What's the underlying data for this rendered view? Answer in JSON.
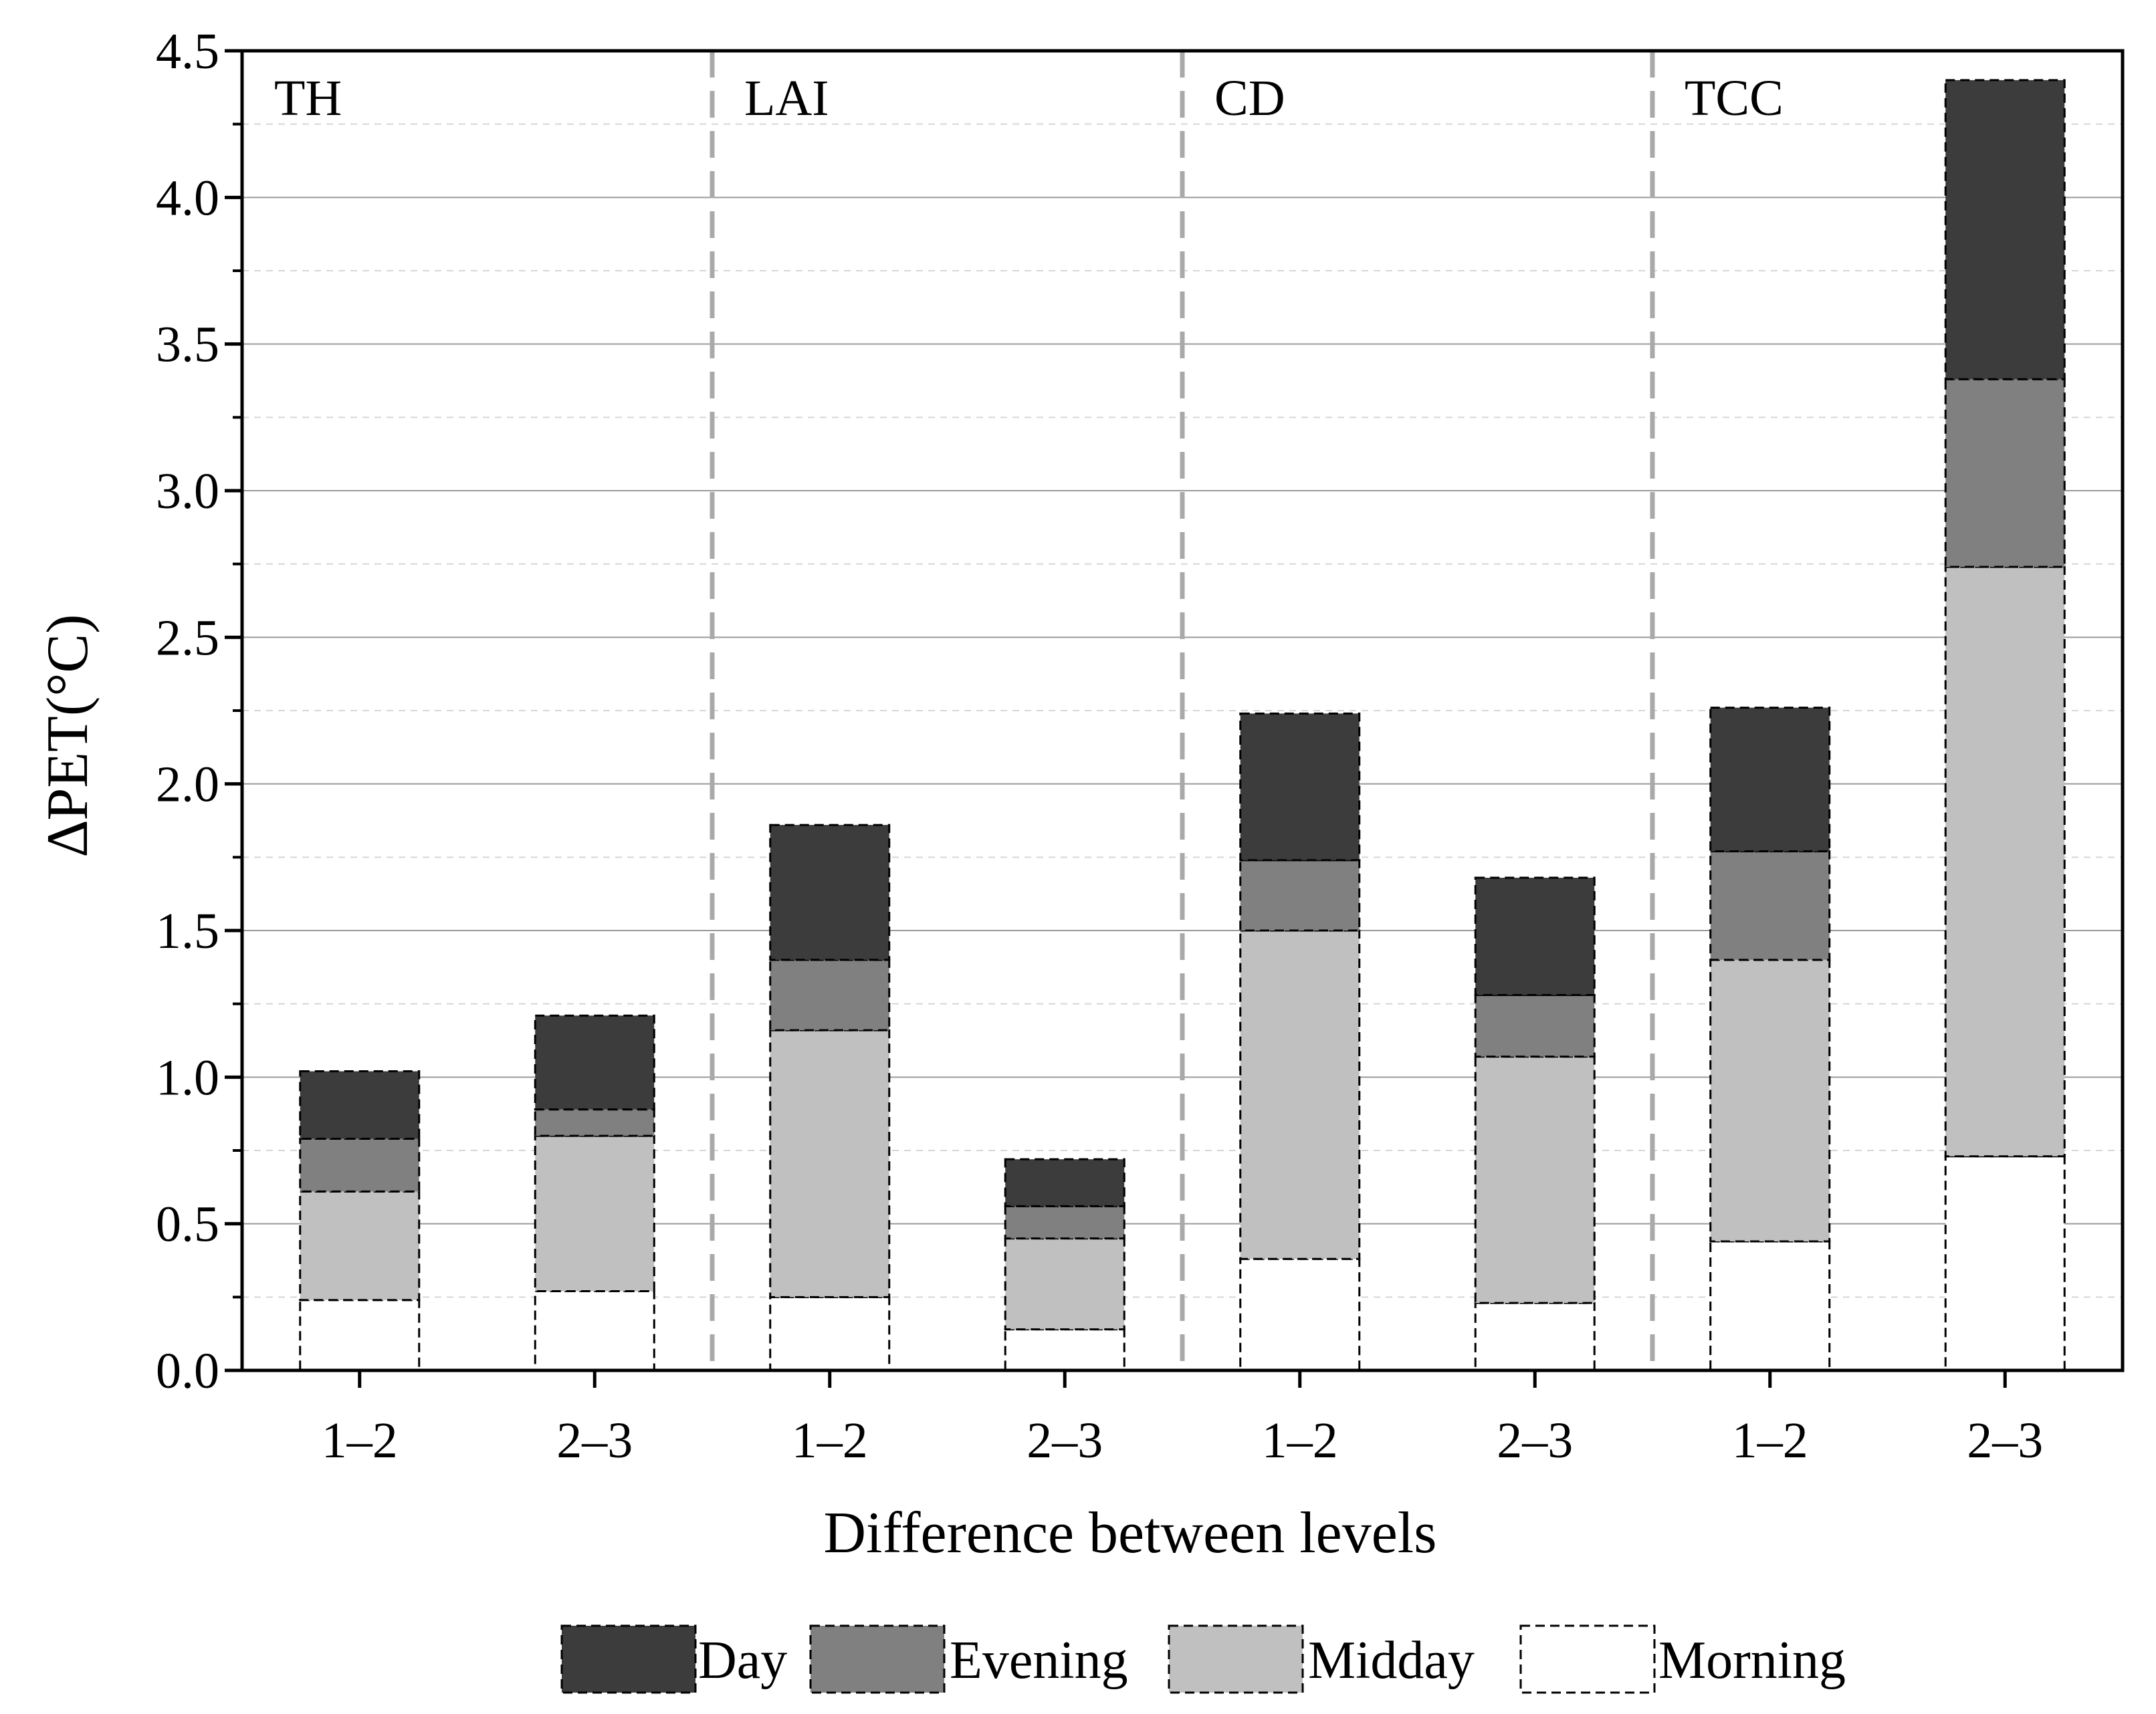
{
  "chart_data": {
    "type": "bar",
    "stacked": true,
    "xlabel": "Difference between levels",
    "ylabel": "∆PET(°C)",
    "ylim": [
      0,
      4.5
    ],
    "yticks": [
      "0.0",
      "0.5",
      "1.0",
      "1.5",
      "2.0",
      "2.5",
      "3.0",
      "3.5",
      "4.0",
      "4.5"
    ],
    "groups": [
      "TH",
      "LAI",
      "CD",
      "TCC"
    ],
    "categories": [
      "1–2",
      "2–3",
      "1–2",
      "2–3",
      "1–2",
      "2–3",
      "1–2",
      "2–3"
    ],
    "category_groups": [
      "TH",
      "TH",
      "LAI",
      "LAI",
      "CD",
      "CD",
      "TCC",
      "TCC"
    ],
    "series": [
      {
        "name": "Morning",
        "color": "#ffffff",
        "values": [
          0.24,
          0.27,
          0.25,
          0.14,
          0.38,
          0.23,
          0.44,
          0.73
        ]
      },
      {
        "name": "Midday",
        "color": "#c0c0c0",
        "values": [
          0.37,
          0.53,
          0.91,
          0.31,
          1.12,
          0.84,
          0.96,
          2.01
        ]
      },
      {
        "name": "Evening",
        "color": "#808080",
        "values": [
          0.18,
          0.09,
          0.24,
          0.11,
          0.24,
          0.21,
          0.37,
          0.64
        ]
      },
      {
        "name": "Day",
        "color": "#3c3c3c",
        "values": [
          0.23,
          0.32,
          0.46,
          0.16,
          0.5,
          0.4,
          0.49,
          1.02
        ]
      }
    ],
    "legend_order": [
      "Day",
      "Evening",
      "Midday",
      "Morning"
    ],
    "legend": {
      "Day": "Day",
      "Evening": "Evening",
      "Midday": "Midday",
      "Morning": "Morning"
    },
    "legend_position": "bottom",
    "grid": true
  }
}
